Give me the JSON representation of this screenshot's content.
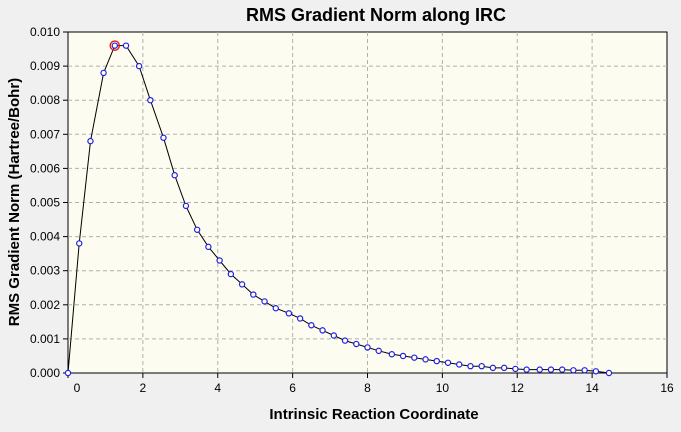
{
  "chart_data": {
    "type": "line",
    "title": "RMS Gradient Norm along IRC",
    "xlabel": "Intrinsic Reaction Coordinate",
    "ylabel": "RMS Gradient Norm (Hartree/Bohr)",
    "xlim": [
      0,
      16
    ],
    "ylim": [
      0,
      0.01
    ],
    "x_ticks": [
      "0",
      "2",
      "4",
      "6",
      "8",
      "10",
      "12",
      "14",
      "16"
    ],
    "y_ticks": [
      "0.000",
      "0.001",
      "0.002",
      "0.003",
      "0.004",
      "0.005",
      "0.006",
      "0.007",
      "0.008",
      "0.009",
      "0.010"
    ],
    "grid": true,
    "legend": "none",
    "series": [
      {
        "x": [
          0.0,
          0.3,
          0.6,
          0.95,
          1.25,
          1.55,
          1.9,
          2.2,
          2.55,
          2.85,
          3.15,
          3.45,
          3.75,
          4.05,
          4.35,
          4.65,
          4.95,
          5.25,
          5.55,
          5.9,
          6.2,
          6.5,
          6.8,
          7.1,
          7.4,
          7.7,
          8.0,
          8.3,
          8.65,
          8.95,
          9.25,
          9.55,
          9.85,
          10.15,
          10.45,
          10.75,
          11.05,
          11.35,
          11.65,
          11.95,
          12.25,
          12.6,
          12.9,
          13.2,
          13.5,
          13.8,
          14.1,
          14.45
        ],
        "y": [
          0.0,
          0.0038,
          0.0068,
          0.0088,
          0.0096,
          0.0096,
          0.009,
          0.008,
          0.0069,
          0.0058,
          0.0049,
          0.0042,
          0.0037,
          0.0033,
          0.0029,
          0.0026,
          0.0023,
          0.0021,
          0.0019,
          0.00175,
          0.0016,
          0.0014,
          0.00125,
          0.0011,
          0.00095,
          0.00085,
          0.00075,
          0.00065,
          0.00055,
          0.0005,
          0.00045,
          0.0004,
          0.00035,
          0.0003,
          0.00025,
          0.0002,
          0.0002,
          0.00015,
          0.00015,
          0.00012,
          0.0001,
          0.0001,
          0.0001,
          0.0001,
          8e-05,
          8e-05,
          5e-05,
          0.0
        ]
      }
    ],
    "highlight_point": {
      "x": 1.25,
      "y": 0.0096
    },
    "colors": {
      "line": "#000000",
      "marker": "#2020e0",
      "highlight": "#e02020",
      "plot_bg": "#fcfcf0",
      "page_bg": "#f0f0f0"
    }
  }
}
